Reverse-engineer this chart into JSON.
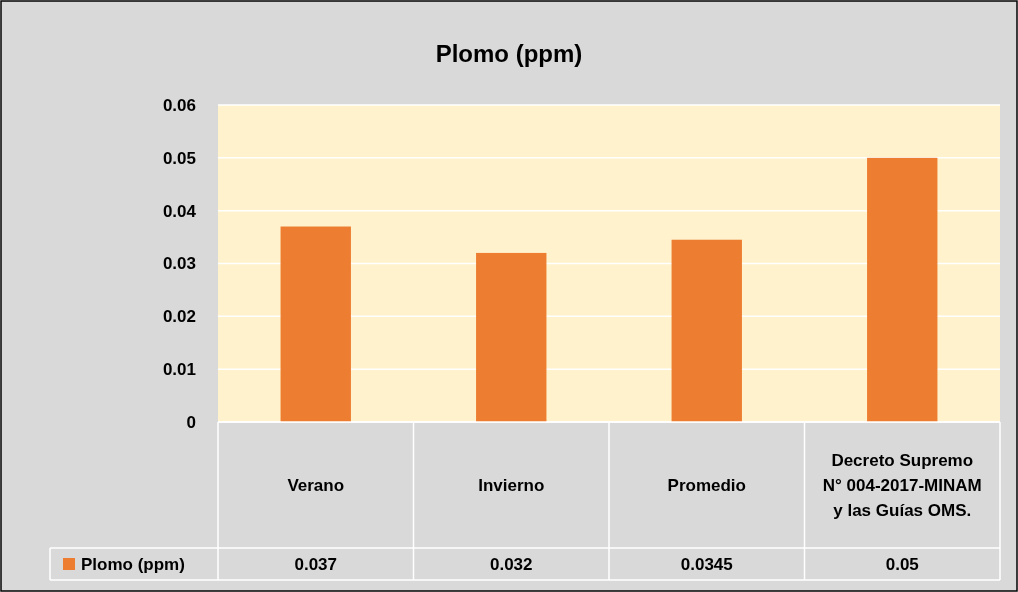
{
  "chart_data": {
    "type": "bar",
    "title": "Plomo (ppm)",
    "categories": [
      "Verano",
      "Invierno",
      "Promedio",
      "Decreto Supremo N° 004-2017-MINAM y las Guías OMS."
    ],
    "series": [
      {
        "name": "Plomo (ppm)",
        "color": "#ed7d31",
        "values": [
          0.037,
          0.032,
          0.0345,
          0.05
        ]
      }
    ],
    "ylim": [
      0,
      0.06
    ],
    "yticks": [
      {
        "value": 0,
        "label": "0"
      },
      0.01,
      0.02,
      0.03,
      0.04,
      0.05,
      0.06
    ],
    "grid": "y",
    "legend": "bottom left",
    "data_labels": true
  }
}
